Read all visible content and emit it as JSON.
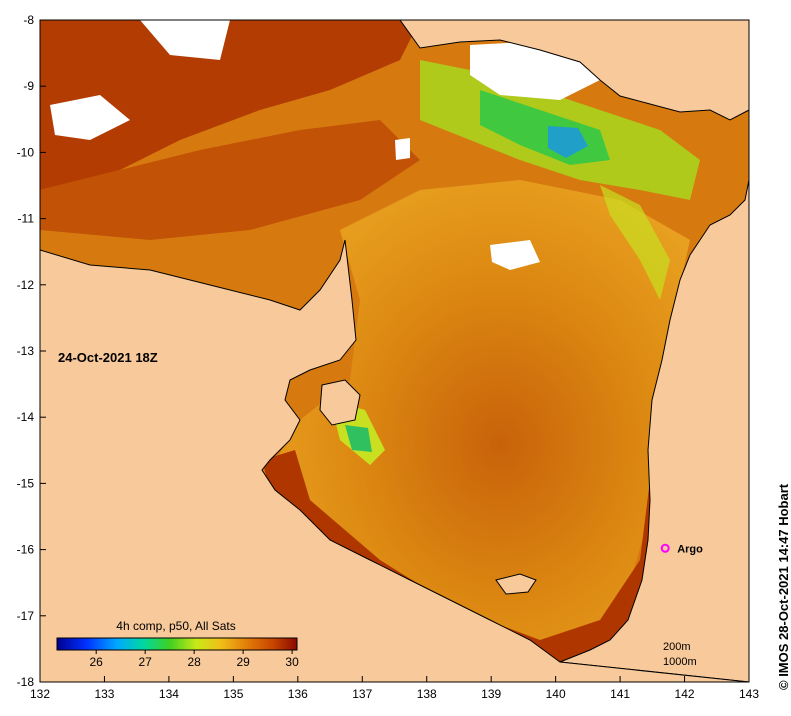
{
  "map": {
    "date_label": "24-Oct-2021 18Z",
    "credit": "© IMOS 28-Oct-2021 14:47 Hobart",
    "x_ticks": [
      "132",
      "133",
      "134",
      "135",
      "136",
      "137",
      "138",
      "139",
      "140",
      "141",
      "142",
      "143"
    ],
    "y_ticks": [
      "-8",
      "-9",
      "-10",
      "-11",
      "-12",
      "-13",
      "-14",
      "-15",
      "-16",
      "-17",
      "-18"
    ],
    "colorbar": {
      "title": "4h comp, p50, All Sats",
      "ticks": [
        "26",
        "27",
        "28",
        "29",
        "30"
      ],
      "range": [
        25.2,
        30.1
      ]
    },
    "argo": {
      "label": "Argo",
      "lon": 141.7,
      "lat": -15.98
    },
    "contours": {
      "label_200": "200m",
      "label_1000": "1000m"
    },
    "colors": {
      "land": "#f8c99a",
      "no_data": "#ffffff",
      "warm": "#b23a00",
      "mid": "#dd8a12",
      "cool": "#9fe21a",
      "argo": "#ff00ff"
    }
  }
}
